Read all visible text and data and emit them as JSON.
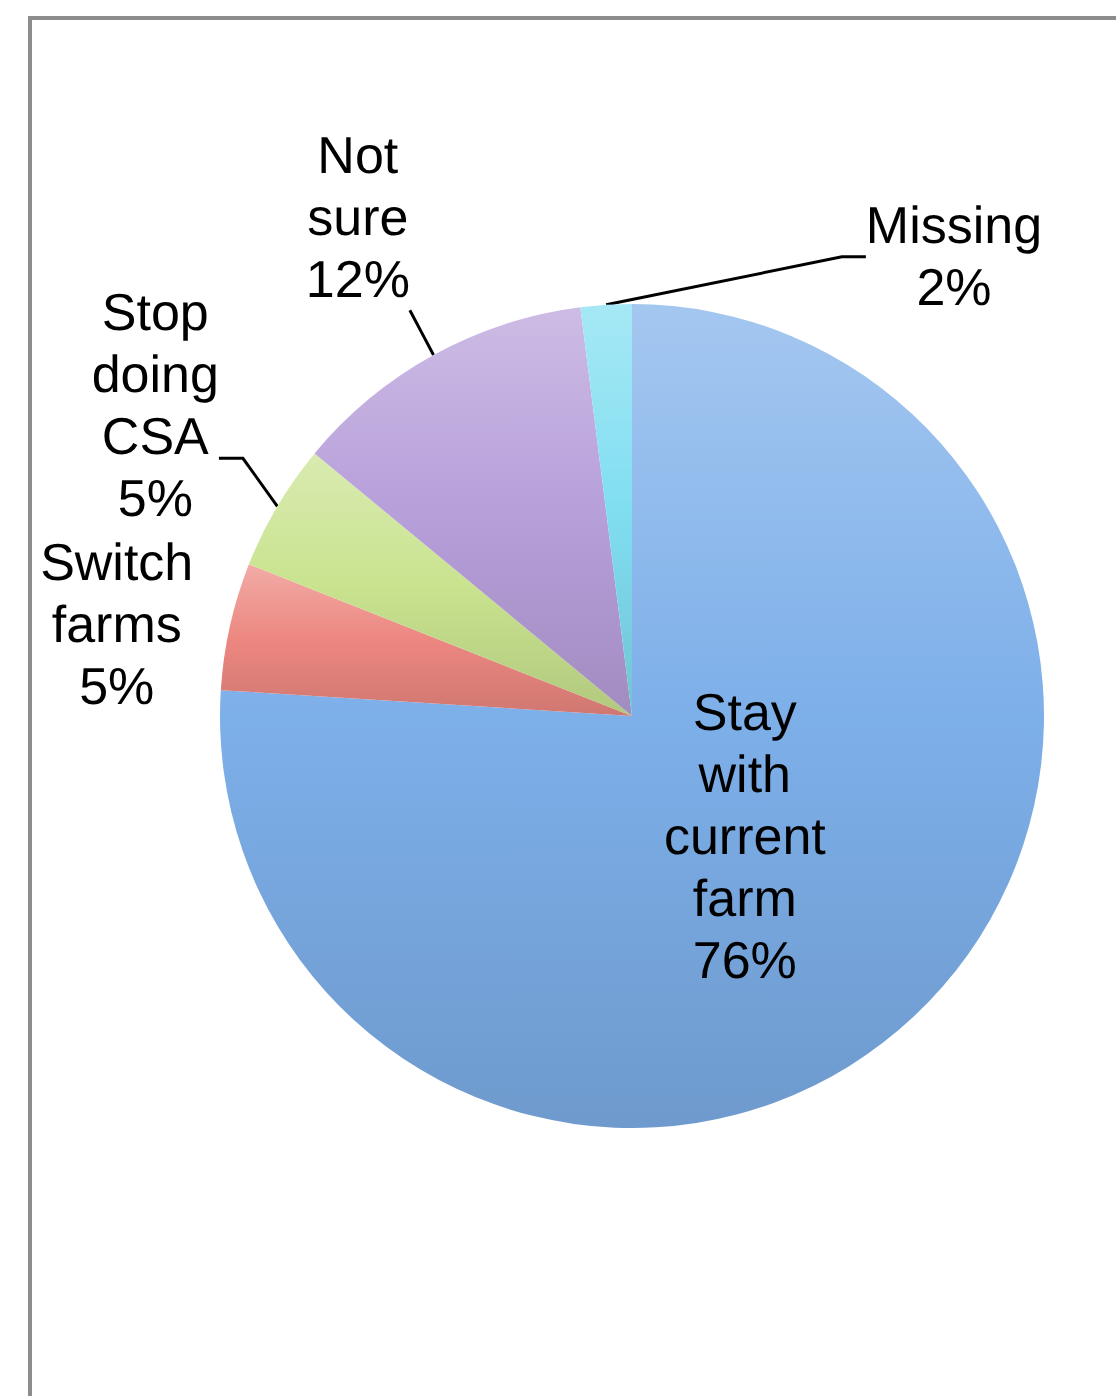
{
  "chart_data": {
    "type": "pie",
    "categories": [
      "Stay with current farm",
      "Switch farms",
      "Stop doing CSA",
      "Not sure",
      "Missing"
    ],
    "values": [
      76,
      5,
      5,
      12,
      2
    ],
    "colors": [
      "#7dafe9",
      "#ec8780",
      "#c9e38f",
      "#b79fda",
      "#80def1"
    ],
    "value_labels": [
      "76%",
      "5%",
      "5%",
      "12%",
      "2%"
    ]
  }
}
